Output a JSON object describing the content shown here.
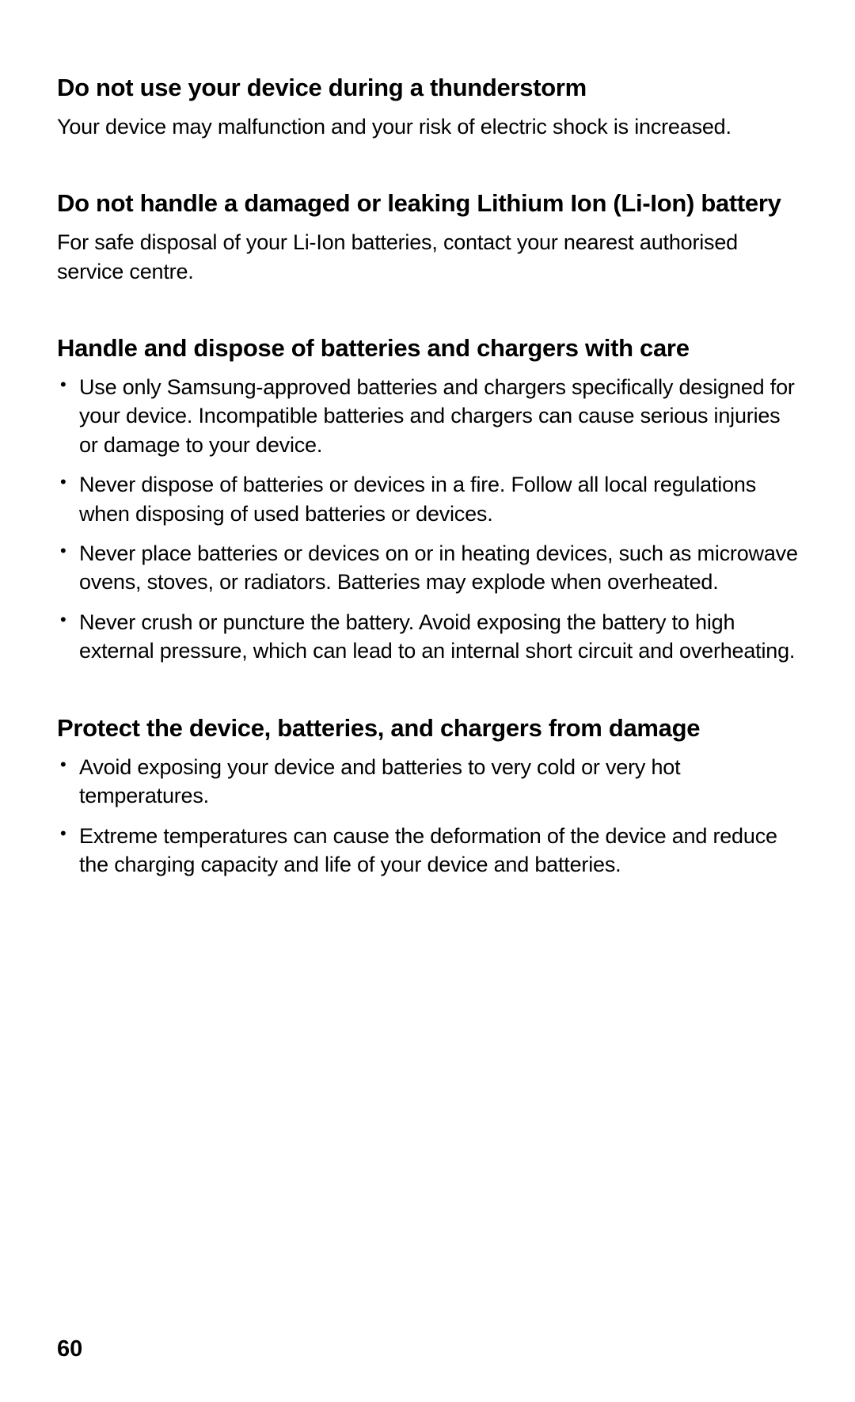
{
  "sections": [
    {
      "heading": "Do not use your device during a thunderstorm",
      "body": "Your device may malfunction and your risk of electric shock is increased."
    },
    {
      "heading": "Do not handle a damaged or leaking Lithium Ion (Li-Ion) battery",
      "body": "For safe disposal of your Li-Ion batteries, contact your nearest authorised service centre."
    },
    {
      "heading": "Handle and dispose of batteries and chargers with care",
      "bullets": [
        "Use only Samsung-approved batteries and chargers specifically designed for your device. Incompatible batteries and chargers can cause serious injuries or damage to your device.",
        "Never dispose of batteries or devices in a fire. Follow all local regulations when disposing of used batteries or devices.",
        "Never place batteries or devices on or in heating devices, such as microwave ovens, stoves, or radiators. Batteries may explode when overheated.",
        "Never crush or puncture the battery. Avoid exposing the battery to high external pressure, which can lead to an internal short circuit and overheating."
      ]
    },
    {
      "heading": "Protect the device, batteries, and chargers from damage",
      "bullets": [
        "Avoid exposing your device and batteries to very cold or very hot temperatures.",
        "Extreme temperatures can cause the deformation of the device and reduce the charging capacity and life of your device and batteries."
      ]
    }
  ],
  "page_number": "60"
}
